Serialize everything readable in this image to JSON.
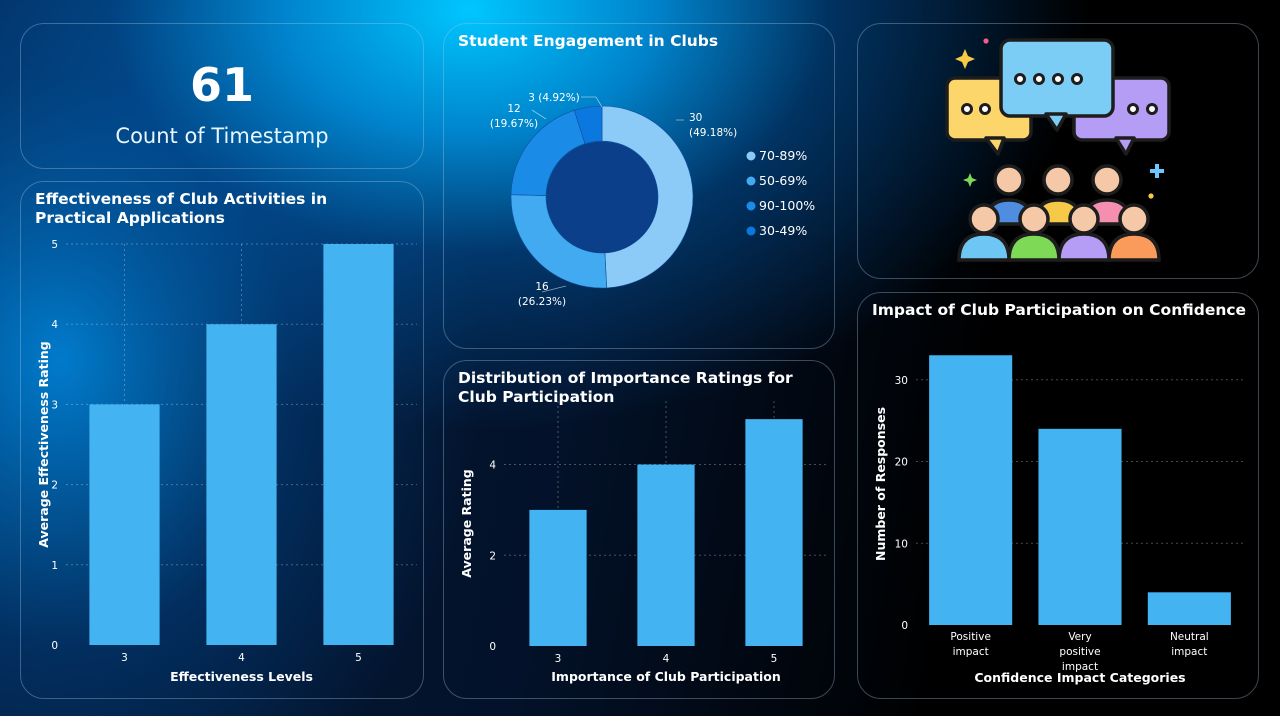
{
  "kpi": {
    "value": "61",
    "label": "Count of Timestamp"
  },
  "colors": {
    "bar": "#44b3f2",
    "donut": [
      "#8ccaf8",
      "#42aaf0",
      "#1a8ce8",
      "#0b78e0"
    ]
  },
  "chart_data": [
    {
      "id": "effectiveness",
      "type": "bar",
      "title": "Effectiveness of Club Activities in Practical Applications",
      "xlabel": "Effectiveness Levels",
      "ylabel": "Average Effectiveness Rating",
      "categories": [
        "3",
        "4",
        "5"
      ],
      "values": [
        3,
        4,
        5
      ],
      "yticks": [
        0,
        1,
        2,
        3,
        4,
        5
      ],
      "ylim": [
        0,
        5
      ],
      "grid": true
    },
    {
      "id": "engagement",
      "type": "pie",
      "variant": "donut",
      "title": "Student Engagement in Clubs",
      "slices": [
        {
          "label": "70-89%",
          "value": 30,
          "count_text": "30",
          "pct_text": "(49.18%)"
        },
        {
          "label": "50-69%",
          "value": 16,
          "count_text": "16",
          "pct_text": "(26.23%)"
        },
        {
          "label": "90-100%",
          "value": 12,
          "count_text": "12",
          "pct_text": "(19.67%)"
        },
        {
          "label": "30-49%",
          "value": 3,
          "count_text": "3",
          "pct_text": "(4.92%)"
        }
      ],
      "legend_position": "right"
    },
    {
      "id": "importance",
      "type": "bar",
      "title": "Distribution of Importance Ratings for Club Participation",
      "xlabel": "Importance of Club Participation",
      "ylabel": "Average Rating",
      "categories": [
        "3",
        "4",
        "5"
      ],
      "values": [
        3,
        4,
        5
      ],
      "yticks": [
        0,
        2,
        4
      ],
      "ylim": [
        0,
        5.4
      ],
      "grid": true
    },
    {
      "id": "confidence",
      "type": "bar",
      "title": "Impact of Club Participation on Confidence",
      "xlabel": "Confidence Impact Categories",
      "ylabel": "Number of Responses",
      "categories": [
        "Positive impact",
        "Very positive impact",
        "Neutral impact"
      ],
      "values": [
        33,
        24,
        4
      ],
      "yticks": [
        0,
        10,
        20,
        30
      ],
      "ylim": [
        0,
        34.5
      ],
      "grid": true
    }
  ],
  "illustration": {
    "name": "club-discussion-illustration"
  }
}
